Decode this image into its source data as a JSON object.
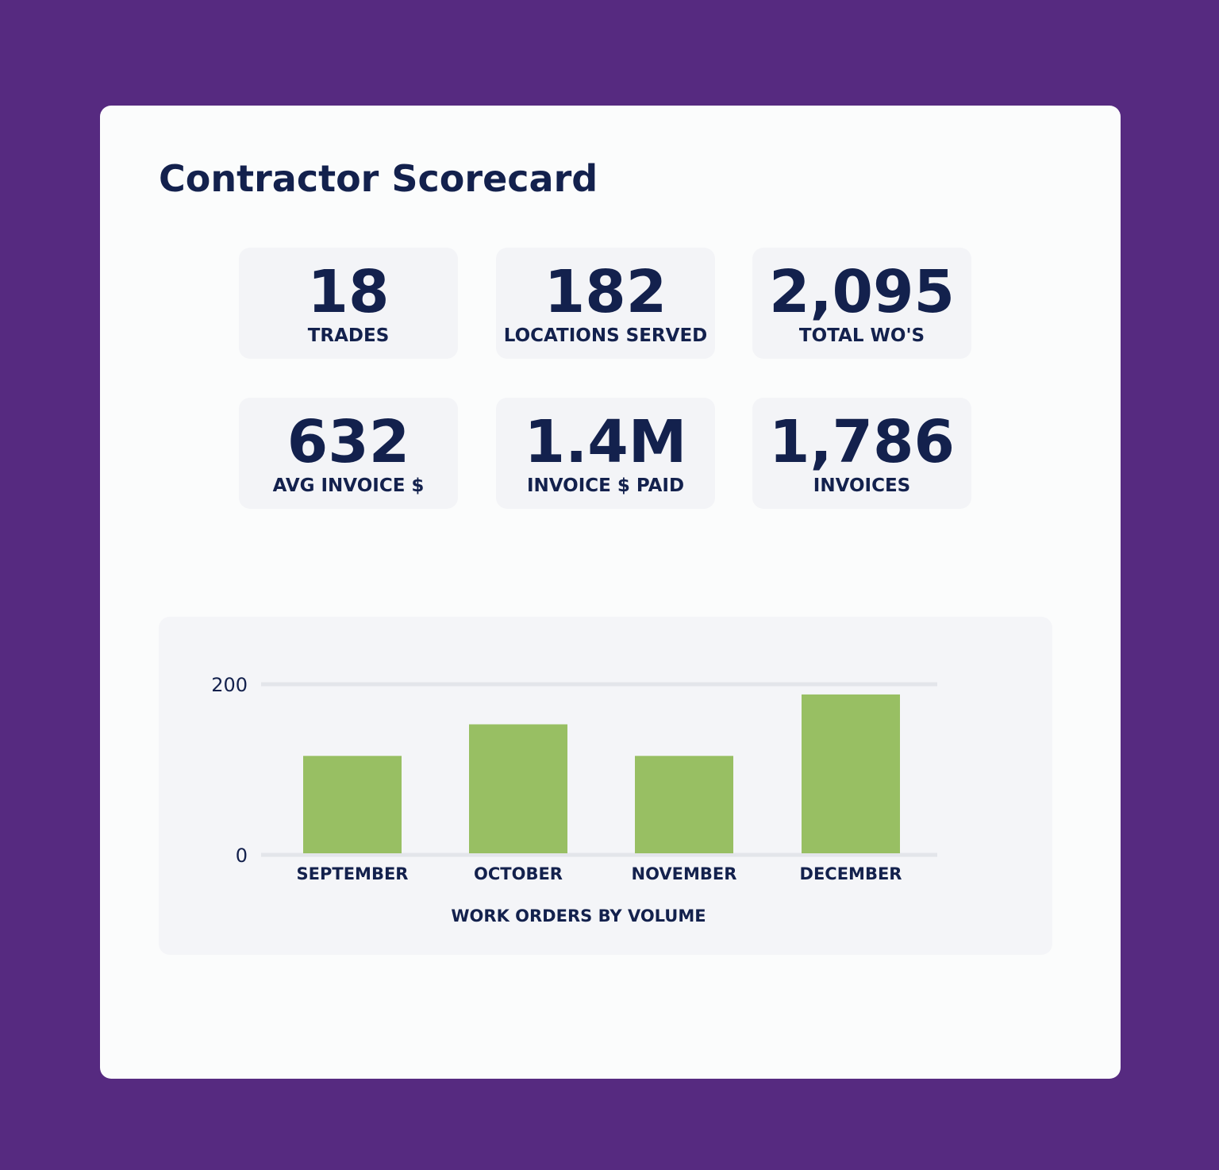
{
  "title": "Contractor Scorecard",
  "metrics": [
    {
      "value": "18",
      "label": "TRADES"
    },
    {
      "value": "182",
      "label": "LOCATIONS SERVED"
    },
    {
      "value": "2,095",
      "label": "TOTAL WO'S"
    },
    {
      "value": "632",
      "label": "AVG INVOICE $"
    },
    {
      "value": "1.4M",
      "label": "INVOICE $ PAID"
    },
    {
      "value": "1,786",
      "label": "INVOICES"
    }
  ],
  "colors": {
    "background": "#562a80",
    "bar": "#98bf63",
    "text": "#13214d"
  },
  "chart_data": {
    "type": "bar",
    "title": "",
    "xlabel": "WORK ORDERS BY VOLUME",
    "ylabel": "",
    "categories": [
      "SEPTEMBER",
      "OCTOBER",
      "NOVEMBER",
      "DECEMBER"
    ],
    "values": [
      116,
      153,
      116,
      188
    ],
    "ylim": [
      0,
      200
    ],
    "yticks": [
      "0",
      "200"
    ],
    "grid": true,
    "legend": "none"
  }
}
